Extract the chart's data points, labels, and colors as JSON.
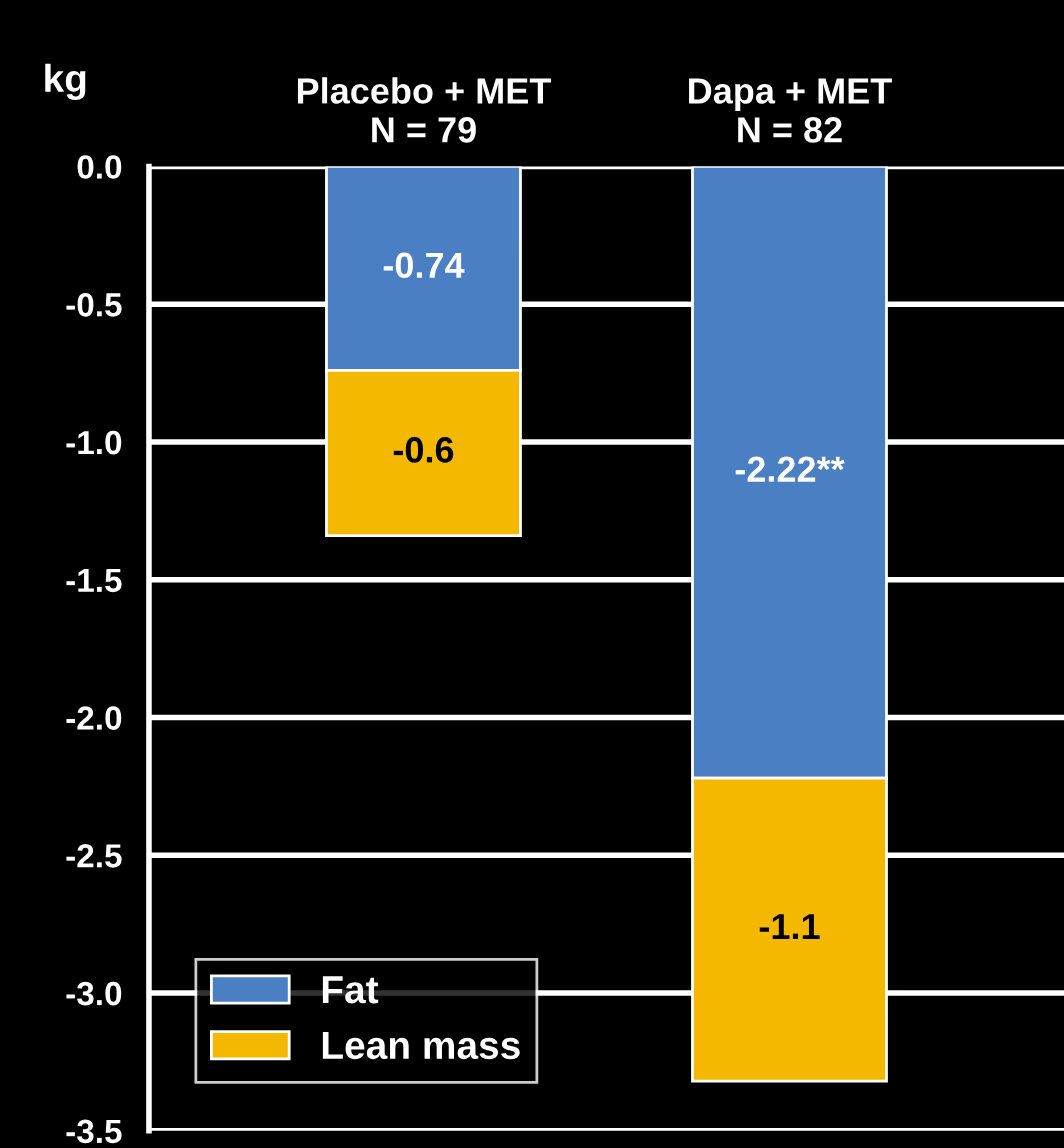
{
  "chart_data": {
    "type": "bar",
    "ylabel": "kg",
    "categories": [
      "Placebo + MET\nN = 79",
      "Dapa + MET\nN = 82"
    ],
    "stacked": true,
    "series": [
      {
        "name": "Fat",
        "color": "#4a7fc4",
        "values": [
          -0.74,
          -2.22
        ],
        "value_labels": [
          "-0.74",
          "-2.22**"
        ]
      },
      {
        "name": "Lean mass",
        "color": "#f5b800",
        "values": [
          -0.6,
          -1.1
        ],
        "value_labels": [
          "-0.6",
          "-1.1"
        ]
      }
    ],
    "ylim": [
      -3.5,
      0
    ],
    "yticks": [
      {
        "value": 0,
        "label": "0.0"
      },
      {
        "value": -0.5,
        "label": "-0.5"
      },
      {
        "value": -1,
        "label": "-1.0"
      },
      {
        "value": -1.5,
        "label": "-1.5"
      },
      {
        "value": -2,
        "label": "-2.0"
      },
      {
        "value": -2.5,
        "label": "-2.5"
      },
      {
        "value": -3,
        "label": "-3.0"
      },
      {
        "value": -3.5,
        "label": "-3.5"
      }
    ],
    "grid": "y",
    "legend": "bottom left"
  }
}
